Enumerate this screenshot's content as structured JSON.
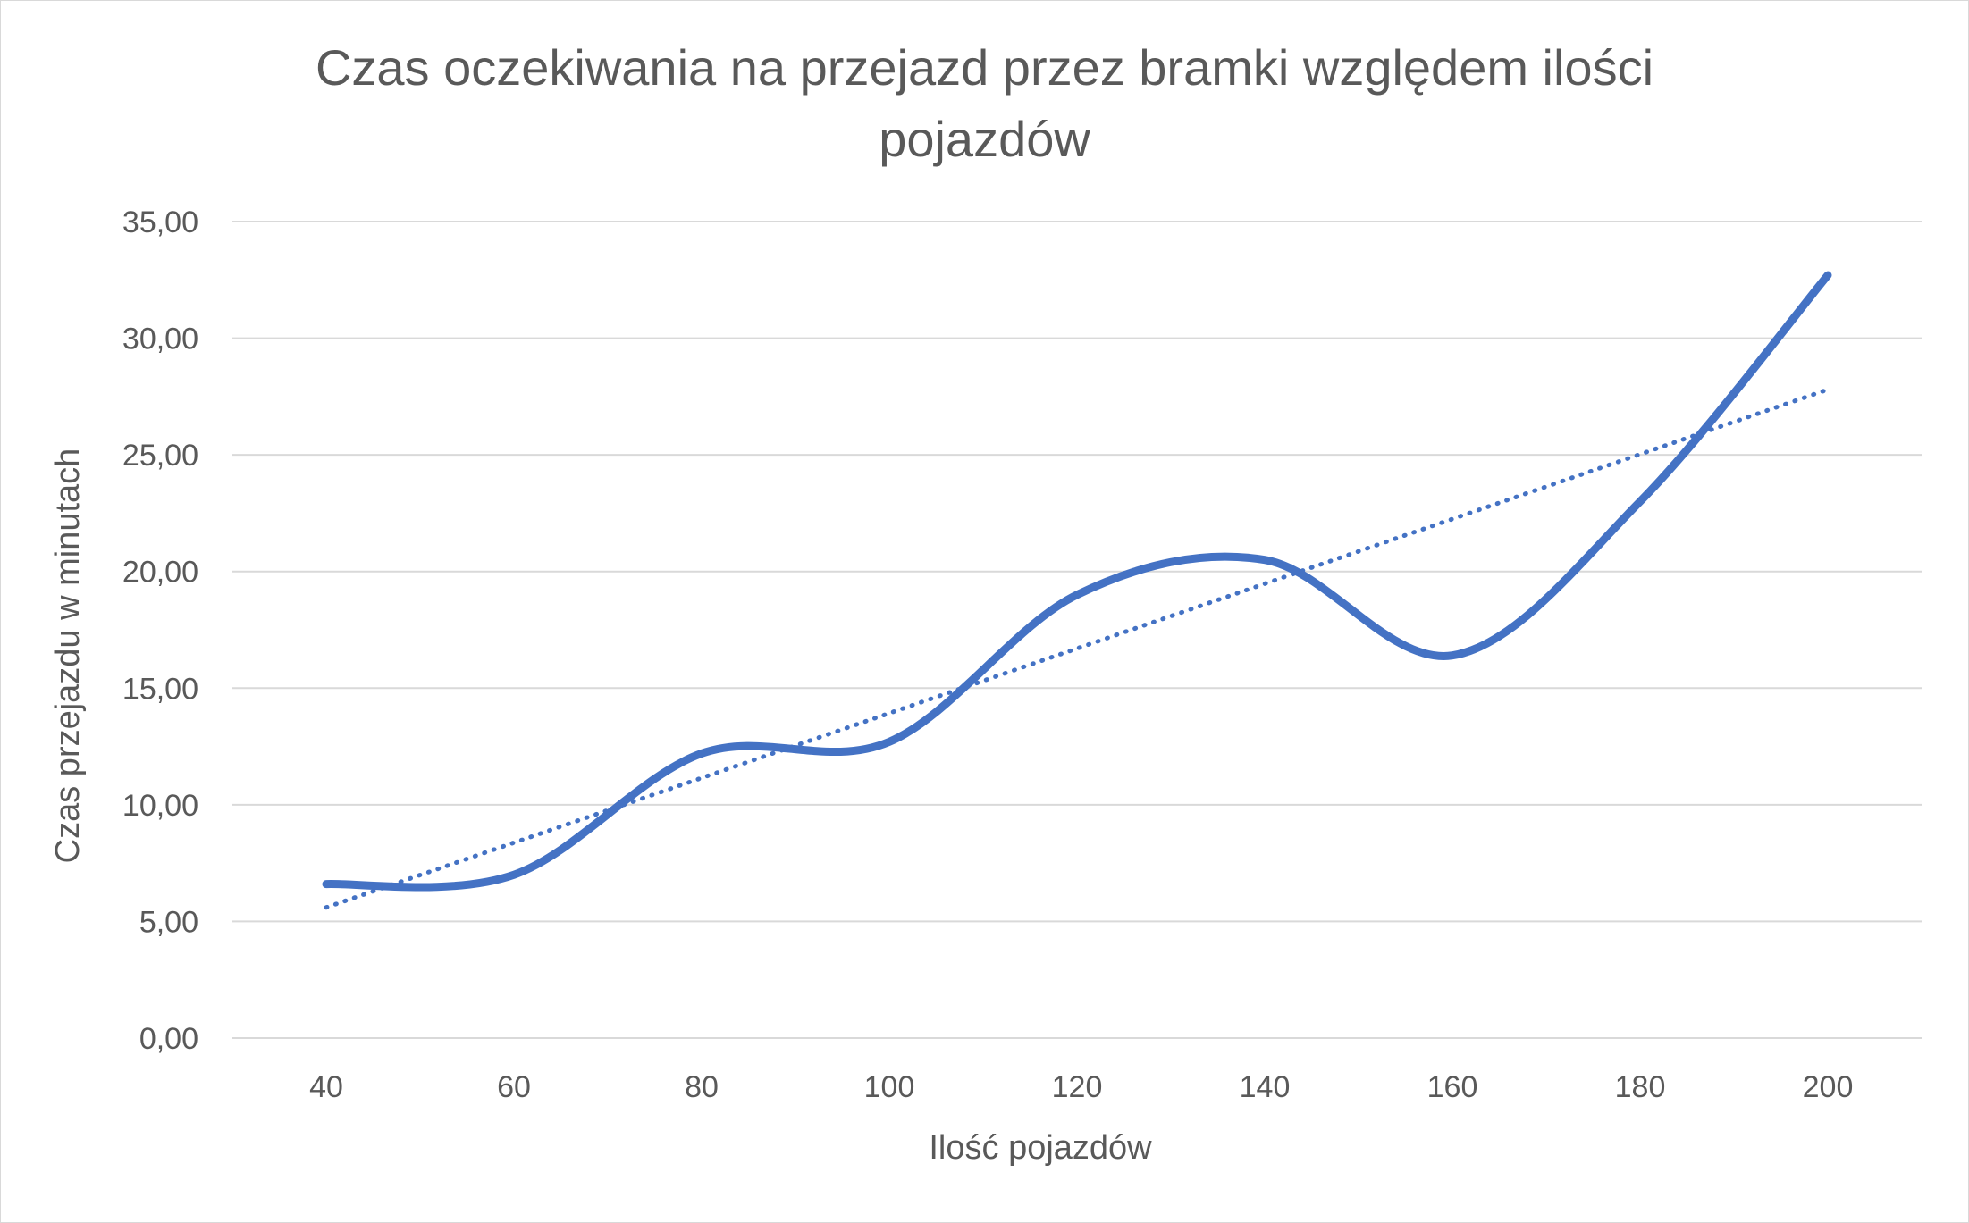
{
  "chart_data": {
    "type": "line",
    "title_lines": [
      "Czas oczekiwania na przejazd przez bramki względem ilości",
      "pojazdów"
    ],
    "xlabel": "Ilość pojazdów",
    "ylabel": "Czas przejazdu w minutach",
    "x": [
      40,
      60,
      80,
      100,
      120,
      140,
      160,
      180,
      200
    ],
    "x_tick_labels": [
      "40",
      "60",
      "80",
      "100",
      "120",
      "140",
      "160",
      "180",
      "200"
    ],
    "series": [
      {
        "values": [
          6.6,
          7.0,
          12.2,
          12.7,
          19.0,
          20.5,
          16.4,
          23.0,
          32.7
        ],
        "color": "#4472C4",
        "style": "smoothed-solid"
      }
    ],
    "trendline": {
      "type": "linear",
      "from": [
        40,
        5.6
      ],
      "to": [
        200,
        27.8
      ],
      "color": "#4472C4",
      "style": "dotted"
    },
    "ylim": [
      0,
      35
    ],
    "y_ticks": [
      0,
      5,
      10,
      15,
      20,
      25,
      30,
      35
    ],
    "y_tick_labels": [
      "0,00",
      "5,00",
      "10,00",
      "15,00",
      "20,00",
      "25,00",
      "30,00",
      "35,00"
    ],
    "grid": "horizontal",
    "legend": "none"
  }
}
